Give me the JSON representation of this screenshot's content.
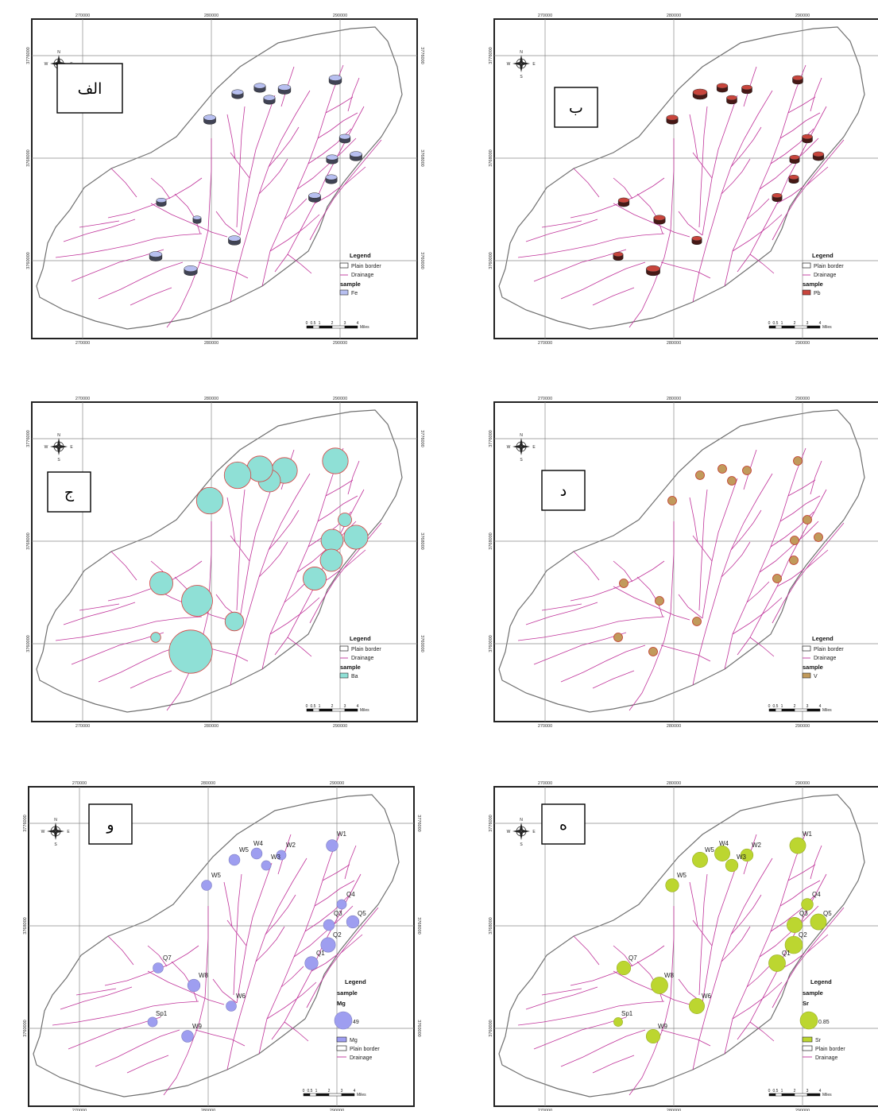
{
  "axis": {
    "x_ticks": [
      "270000",
      "280000",
      "290000"
    ],
    "y_ticks": [
      "3776000",
      "3768000",
      "3760000"
    ]
  },
  "legend_common": {
    "title": "Legend",
    "plain_border": "Plain border",
    "drainage": "Drainage",
    "sample": "sample"
  },
  "scale": {
    "labels": [
      "0",
      "0.5",
      "1",
      "2",
      "3",
      "4"
    ],
    "unit": "Miles"
  },
  "compass": {
    "n": "N",
    "s": "S",
    "e": "E",
    "w": "W"
  },
  "panels": [
    {
      "id": "a",
      "label": "الف",
      "element": "Fe",
      "color": "#b7bff0",
      "style": "cylinder"
    },
    {
      "id": "b",
      "label": "ب",
      "element": "Pb",
      "color": "#c8453c",
      "style": "cylinder"
    },
    {
      "id": "c",
      "label": "ج",
      "element": "Ba",
      "color": "#8fe0d6",
      "style": "circle",
      "stroke": "#d84040"
    },
    {
      "id": "d",
      "label": "د",
      "element": "V",
      "color": "#c19a5b",
      "style": "circle",
      "stroke": "#c0392b"
    },
    {
      "id": "e",
      "label": "و",
      "element": "Mg",
      "color": "#9e9ef0",
      "style": "labeled",
      "legend_symbol": "Mg",
      "legend_value": "49"
    },
    {
      "id": "f",
      "label": "ه",
      "element": "Sr",
      "color": "#bcd630",
      "style": "labeled",
      "legend_symbol": "Sr",
      "legend_value": "0.85"
    }
  ],
  "sample_sites": [
    "W1",
    "W2",
    "W3",
    "W4",
    "W5",
    "W5",
    "Q4",
    "Q3",
    "Q5",
    "Q2",
    "Q1",
    "Q7",
    "W8",
    "W6",
    "Sp1",
    "W9"
  ],
  "sample_values": {
    "Fe": [
      0.7,
      0.7,
      0.6,
      0.6,
      0.6,
      0.65,
      0.55,
      0.6,
      0.65,
      0.6,
      0.65,
      0.45,
      0.3,
      0.65,
      0.7,
      0.75
    ],
    "Pb": [
      0.5,
      0.5,
      0.5,
      0.55,
      0.85,
      0.6,
      0.5,
      0.45,
      0.55,
      0.45,
      0.45,
      0.55,
      0.6,
      0.45,
      0.45,
      0.8
    ],
    "Ba": [
      1.2,
      1.2,
      1.0,
      1.2,
      1.25,
      1.25,
      0.5,
      1.0,
      1.1,
      1.0,
      1.05,
      1.05,
      1.5,
      0.8,
      0.3,
      2.2
    ],
    "V": [
      0.55,
      0.55,
      0.55,
      0.55,
      0.55,
      0.55,
      0.55,
      0.5,
      0.55,
      0.5,
      0.5,
      0.55,
      0.55,
      0.55,
      0.55,
      0.55
    ],
    "Mg": [
      0.6,
      0.45,
      0.45,
      0.55,
      0.55,
      0.5,
      0.45,
      0.55,
      0.65,
      0.8,
      0.7,
      0.5,
      0.65,
      0.5,
      0.45,
      0.6
    ],
    "Sr": [
      0.9,
      0.65,
      0.65,
      0.85,
      0.85,
      0.7,
      0.6,
      0.85,
      0.9,
      1.0,
      0.95,
      0.75,
      0.95,
      0.85,
      0.4,
      0.75
    ]
  }
}
